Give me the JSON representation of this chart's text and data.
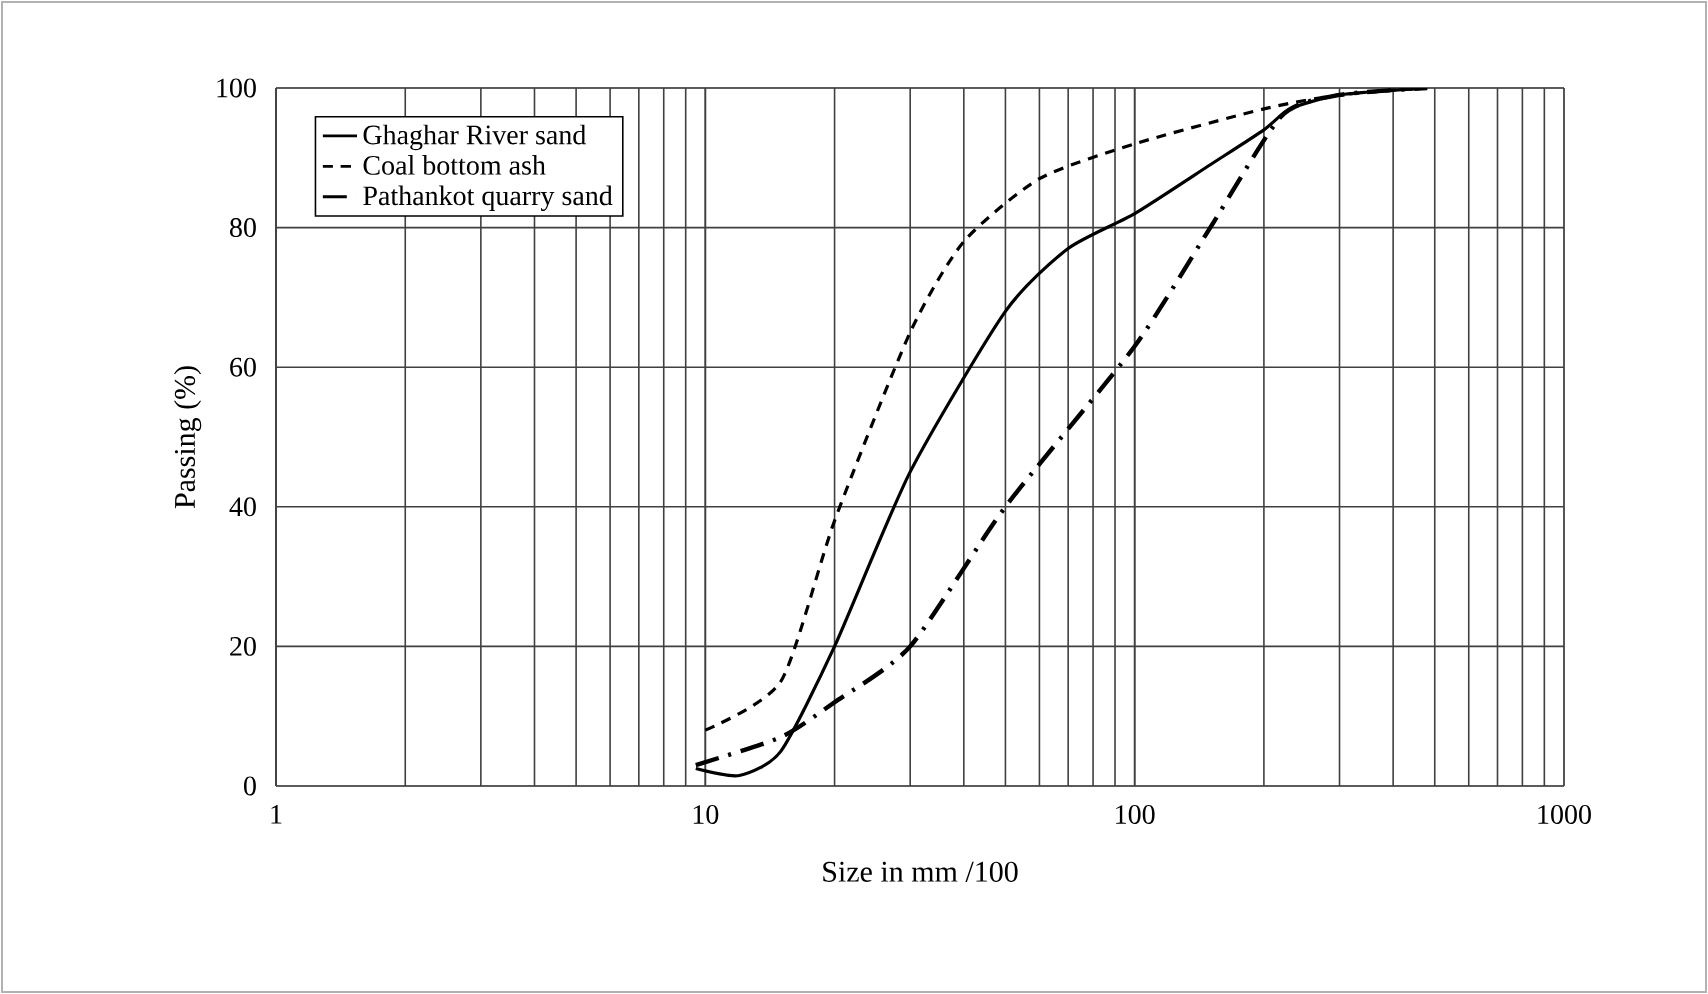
{
  "chart_data": {
    "type": "line",
    "xlabel": "Size in mm /100",
    "ylabel": "Passing (%)",
    "log": "x",
    "xlim": [
      1,
      1000
    ],
    "xticks": [
      1,
      10,
      100,
      1000
    ],
    "ylim": [
      0,
      100
    ],
    "yticks": [
      0,
      20,
      40,
      60,
      80,
      100
    ],
    "grid": true,
    "legend": "top left",
    "marker": "none",
    "series": [
      {
        "name": "Ghaghar River sand",
        "color": "#000000",
        "line_style": "solid",
        "x": [
          9.5,
          12,
          15,
          20,
          30,
          50,
          70,
          100,
          150,
          200,
          230,
          300,
          480
        ],
        "values": [
          2.5,
          1.5,
          5,
          20,
          45,
          68,
          77,
          82,
          89,
          94,
          97,
          99,
          100
        ]
      },
      {
        "name": "Coal bottom ash",
        "color": "#000000",
        "line_style": "dashed",
        "x": [
          10,
          15,
          20,
          30,
          40,
          60,
          100,
          200,
          300,
          480
        ],
        "values": [
          8,
          15,
          38,
          65,
          78,
          87,
          92,
          97,
          99,
          100
        ]
      },
      {
        "name": "Pathankot quarry sand",
        "color": "#000000",
        "line_style": "dashdot",
        "x": [
          9.5,
          15,
          20,
          30,
          50,
          100,
          150,
          220,
          300,
          480
        ],
        "values": [
          3,
          7,
          12,
          20,
          40,
          63,
          80,
          96,
          99,
          100
        ]
      }
    ]
  }
}
